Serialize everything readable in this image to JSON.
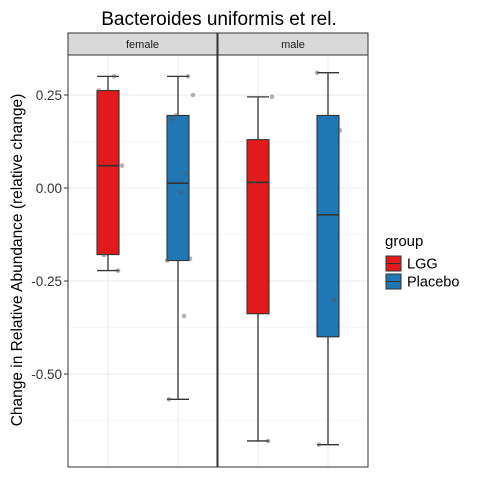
{
  "chart_data": {
    "type": "box",
    "title": "Bacteroides uniformis et rel.",
    "ylabel": "Change in Relative Abundance (relative change)",
    "xlabel": "",
    "ylim": [
      -0.69,
      0.38
    ],
    "yticks": [
      0.25,
      0.0,
      -0.25,
      -0.5
    ],
    "ytick_labels": [
      "0.25",
      "0.00",
      "-0.25",
      "-0.50"
    ],
    "grid": true,
    "legend": {
      "title": "group",
      "position": "right",
      "entries": [
        {
          "label": "LGG",
          "color": "#E31A1C"
        },
        {
          "label": "Placebo",
          "color": "#1F78B4"
        }
      ]
    },
    "panels": [
      {
        "label": "female",
        "boxes": [
          {
            "group": "LGG",
            "whisker_low": -0.222,
            "q1": -0.179,
            "median": 0.06,
            "q3": 0.262,
            "whisker_high": 0.3,
            "points": [
              -0.222,
              -0.18,
              0.06,
              0.262,
              0.3
            ]
          },
          {
            "group": "Placebo",
            "whisker_low": -0.568,
            "q1": -0.195,
            "median": 0.013,
            "q3": 0.195,
            "whisker_high": 0.3,
            "points": [
              -0.568,
              -0.344,
              -0.19,
              -0.195,
              -0.012,
              0.04,
              0.185,
              0.25,
              0.195,
              0.3
            ]
          }
        ]
      },
      {
        "label": "male",
        "boxes": [
          {
            "group": "LGG",
            "whisker_low": -0.68,
            "q1": -0.338,
            "median": 0.015,
            "q3": 0.13,
            "whisker_high": 0.245,
            "points": [
              -0.68,
              0.015,
              0.245
            ]
          },
          {
            "group": "Placebo",
            "whisker_low": -0.69,
            "q1": -0.4,
            "median": -0.072,
            "q3": 0.195,
            "whisker_high": 0.31,
            "points": [
              -0.69,
              -0.3,
              0.155,
              0.31
            ]
          }
        ]
      }
    ]
  }
}
